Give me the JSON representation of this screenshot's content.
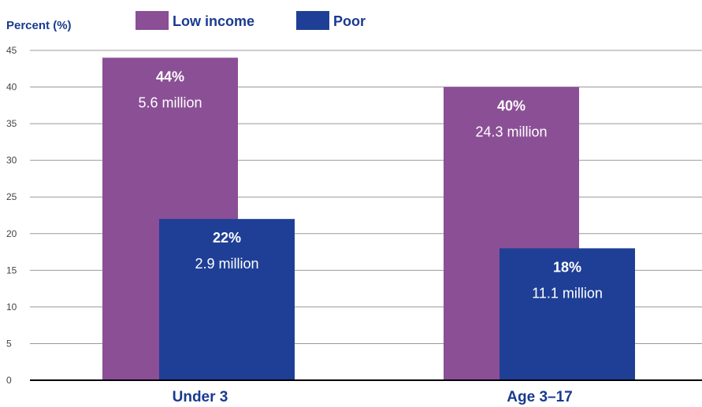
{
  "chart_data": {
    "type": "bar",
    "ylabel": "Percent (%)",
    "categories": [
      "Under 3",
      "Age 3–17"
    ],
    "ylim": [
      0,
      45
    ],
    "yticks": [
      0,
      5,
      10,
      15,
      20,
      25,
      30,
      35,
      40,
      45
    ],
    "grid": true,
    "legend_position": "top",
    "series": [
      {
        "name": "Low income",
        "color": "#8b4f96",
        "values": [
          44,
          40
        ],
        "percent_labels": [
          "44%",
          "40%"
        ],
        "count_labels": [
          "5.6 million",
          "24.3 million"
        ]
      },
      {
        "name": "Poor",
        "color": "#1f3f96",
        "values": [
          22,
          18
        ],
        "percent_labels": [
          "22%",
          "18%"
        ],
        "count_labels": [
          "2.9 million",
          "11.1 million"
        ]
      }
    ]
  }
}
